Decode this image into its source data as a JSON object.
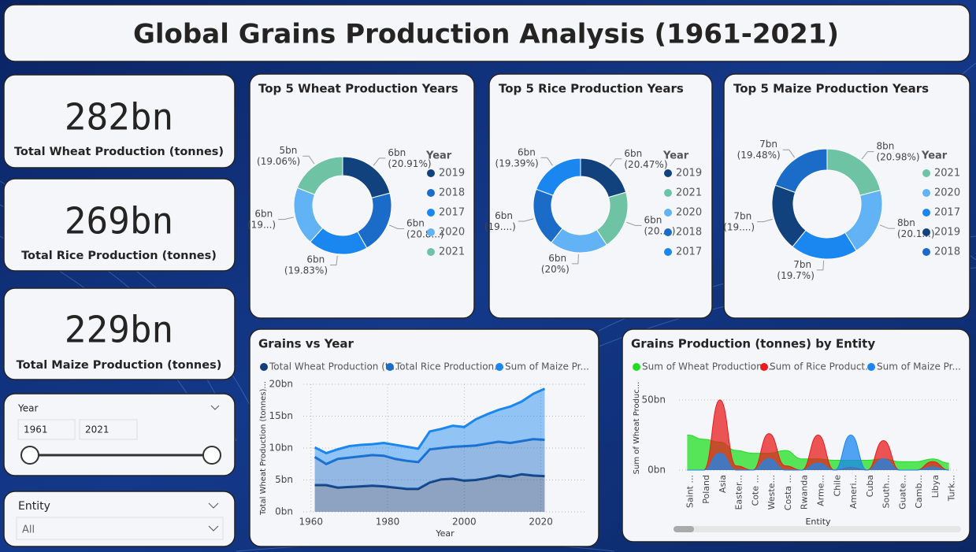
{
  "title": "Global Grains Production Analysis (1961-2021)",
  "kpis": [
    {
      "value": "282bn",
      "label": "Total Wheat Production (tonnes)"
    },
    {
      "value": "269bn",
      "label": "Total Rice Production (tonnes)"
    },
    {
      "value": "229bn",
      "label": "Total Maize Production (tonnes)"
    }
  ],
  "slicers": {
    "year": {
      "label": "Year",
      "from": 1961,
      "to": 2021
    },
    "entity": {
      "label": "Entity",
      "value": "All"
    }
  },
  "chart_data": [
    {
      "type": "donut",
      "title": "Top 5 Wheat Production Years",
      "legend_title": "Year",
      "categories": [
        "2019",
        "2018",
        "2017",
        "2020",
        "2021"
      ],
      "values": [
        20.91,
        20.85,
        19.83,
        19.35,
        19.06
      ],
      "value_labels": [
        "6bn (20.91%)",
        "6bn (20.8...)",
        "6bn (19.83%)",
        "6bn (19...)",
        "5bn (19.06%)"
      ],
      "colors": [
        "#12427e",
        "#1a6cc8",
        "#1a86f0",
        "#62b2f6",
        "#6fc3a5"
      ]
    },
    {
      "type": "donut",
      "title": "Top 5 Rice Production Years",
      "legend_title": "Year",
      "categories": [
        "2019",
        "2021",
        "2020",
        "2018",
        "2017"
      ],
      "values": [
        20.47,
        20.2,
        20,
        19.94,
        19.39
      ],
      "value_labels": [
        "6bn (20.47%)",
        "6bn (20....)",
        "6bn (20%)",
        "6bn (19....)",
        "6bn (19.39%)"
      ],
      "colors": [
        "#12427e",
        "#6fc3a5",
        "#62b2f6",
        "#1a6cc8",
        "#1a86f0"
      ]
    },
    {
      "type": "donut",
      "title": "Top 5 Maize Production Years",
      "legend_title": "Year",
      "categories": [
        "2021",
        "2020",
        "2017",
        "2019",
        "2018"
      ],
      "values": [
        20.98,
        20.14,
        19.7,
        19.7,
        19.48
      ],
      "value_labels": [
        "8bn (20.98%)",
        "8bn (20.1...)",
        "7bn (19.7%)",
        "7bn (19....)",
        "7bn (19.48%)"
      ],
      "colors": [
        "#6fc3a5",
        "#62b2f6",
        "#1a86f0",
        "#12427e",
        "#1a6cc8"
      ]
    },
    {
      "type": "area",
      "stacked": true,
      "title": "Grains vs Year",
      "xlabel": "Year",
      "ylabel": "Total Wheat Production (tonnes)...",
      "x": [
        1961,
        1964,
        1967,
        1970,
        1973,
        1976,
        1979,
        1982,
        1985,
        1988,
        1991,
        1994,
        1997,
        2000,
        2003,
        2006,
        2009,
        2012,
        2015,
        2018,
        2021
      ],
      "xlim": [
        1958,
        2032
      ],
      "xticks": [
        1960,
        1980,
        2000,
        2020
      ],
      "ylim": [
        0,
        20
      ],
      "yticks": [
        {
          "value": 0,
          "label": "0bn"
        },
        {
          "value": 5,
          "label": "5bn"
        },
        {
          "value": 10,
          "label": "10bn"
        },
        {
          "value": 15,
          "label": "15bn"
        },
        {
          "value": 20,
          "label": "20bn"
        }
      ],
      "grid": true,
      "series": [
        {
          "name": "Total Wheat Production (t...",
          "color": "#123e7c",
          "values": [
            4.2,
            4.2,
            3.8,
            3.9,
            4.0,
            4.1,
            4.0,
            3.8,
            3.6,
            3.6,
            4.6,
            5.1,
            5.2,
            4.9,
            5.0,
            5.3,
            5.7,
            5.5,
            5.9,
            5.7,
            5.6
          ]
        },
        {
          "name": "Total Rice  Production...",
          "color": "#1a6cc8",
          "values": [
            4.4,
            3.3,
            4.5,
            4.6,
            4.7,
            4.8,
            4.8,
            4.5,
            4.4,
            4.2,
            5.2,
            4.9,
            5.0,
            5.4,
            5.4,
            5.4,
            5.3,
            5.3,
            5.2,
            5.7,
            5.7
          ]
        },
        {
          "name": "Sum of Maize Pr...",
          "color": "#1a86f0",
          "values": [
            1.5,
            1.7,
            1.5,
            1.8,
            1.8,
            1.7,
            2.0,
            2.2,
            2.2,
            2.1,
            2.8,
            3.0,
            3.3,
            3.0,
            4.1,
            4.6,
            5.0,
            5.7,
            6.2,
            7.1,
            8.0
          ]
        }
      ]
    },
    {
      "type": "area",
      "stacked": false,
      "smooth": true,
      "title": "Grains Production (tonnes) by Entity",
      "xlabel": "Entity",
      "ylabel": "Sum of Wheat Produc...",
      "categories": [
        "Saint ...",
        "Poland",
        "Asia",
        "Easter...",
        "Cote ...",
        "Weste...",
        "Costa ...",
        "Rwanda",
        "Arme...",
        "Chile",
        "Ameri...",
        "Cuba",
        "South...",
        "Guate...",
        "Camb...",
        "Libya",
        "Turk..."
      ],
      "ylim": [
        0,
        60
      ],
      "yticks": [
        {
          "value": 0,
          "label": "0bn"
        },
        {
          "value": 50,
          "label": "50bn"
        }
      ],
      "grid": true,
      "series": [
        {
          "name": "Sum of Wheat Production ...",
          "color": "#22dd22",
          "values": [
            25,
            22,
            20,
            14,
            12,
            12,
            14,
            8,
            8,
            7,
            7,
            7,
            8,
            6,
            6,
            8,
            5
          ]
        },
        {
          "name": "Sum of Rice  Product...",
          "color": "#e81c1c",
          "values": [
            0,
            0,
            50,
            3,
            0,
            26,
            3,
            0,
            25,
            0,
            2,
            0,
            21,
            0,
            0,
            6,
            0
          ]
        },
        {
          "name": "Sum of Maize Pr...",
          "color": "#1a86f0",
          "values": [
            0,
            0,
            12,
            0,
            0,
            8,
            0,
            0,
            5,
            0,
            25,
            0,
            8,
            0,
            0,
            2,
            0
          ]
        }
      ]
    }
  ]
}
